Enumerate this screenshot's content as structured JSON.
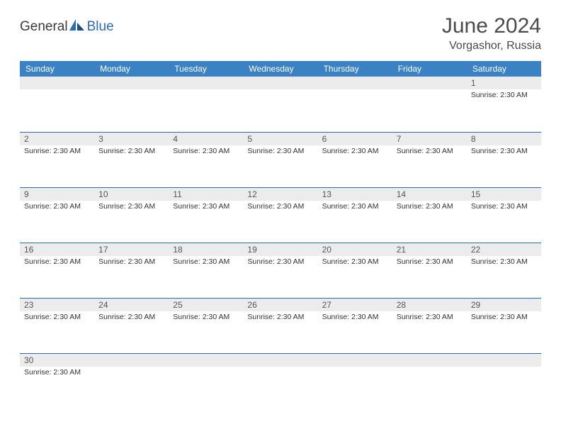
{
  "logo": {
    "text1": "General",
    "text2": "Blue",
    "fill1": "#2a6db5",
    "fill2": "#1a4d85"
  },
  "header": {
    "month_title": "June 2024",
    "location": "Vorgashor, Russia"
  },
  "colors": {
    "header_bar": "#3b82c4",
    "week_border": "#2a6db5",
    "daynum_bg": "#ececec",
    "text_dark": "#333333",
    "text_mid": "#555555"
  },
  "weekdays": [
    "Sunday",
    "Monday",
    "Tuesday",
    "Wednesday",
    "Thursday",
    "Friday",
    "Saturday"
  ],
  "sunrise_label": "Sunrise: 2:30 AM",
  "weeks": [
    [
      {
        "num": "",
        "info": "",
        "empty": true
      },
      {
        "num": "",
        "info": "",
        "empty": true
      },
      {
        "num": "",
        "info": "",
        "empty": true
      },
      {
        "num": "",
        "info": "",
        "empty": true
      },
      {
        "num": "",
        "info": "",
        "empty": true
      },
      {
        "num": "",
        "info": "",
        "empty": true
      },
      {
        "num": "1",
        "info": "Sunrise: 2:30 AM"
      }
    ],
    [
      {
        "num": "2",
        "info": "Sunrise: 2:30 AM"
      },
      {
        "num": "3",
        "info": "Sunrise: 2:30 AM"
      },
      {
        "num": "4",
        "info": "Sunrise: 2:30 AM"
      },
      {
        "num": "5",
        "info": "Sunrise: 2:30 AM"
      },
      {
        "num": "6",
        "info": "Sunrise: 2:30 AM"
      },
      {
        "num": "7",
        "info": "Sunrise: 2:30 AM"
      },
      {
        "num": "8",
        "info": "Sunrise: 2:30 AM"
      }
    ],
    [
      {
        "num": "9",
        "info": "Sunrise: 2:30 AM"
      },
      {
        "num": "10",
        "info": "Sunrise: 2:30 AM"
      },
      {
        "num": "11",
        "info": "Sunrise: 2:30 AM"
      },
      {
        "num": "12",
        "info": "Sunrise: 2:30 AM"
      },
      {
        "num": "13",
        "info": "Sunrise: 2:30 AM"
      },
      {
        "num": "14",
        "info": "Sunrise: 2:30 AM"
      },
      {
        "num": "15",
        "info": "Sunrise: 2:30 AM"
      }
    ],
    [
      {
        "num": "16",
        "info": "Sunrise: 2:30 AM"
      },
      {
        "num": "17",
        "info": "Sunrise: 2:30 AM"
      },
      {
        "num": "18",
        "info": "Sunrise: 2:30 AM"
      },
      {
        "num": "19",
        "info": "Sunrise: 2:30 AM"
      },
      {
        "num": "20",
        "info": "Sunrise: 2:30 AM"
      },
      {
        "num": "21",
        "info": "Sunrise: 2:30 AM"
      },
      {
        "num": "22",
        "info": "Sunrise: 2:30 AM"
      }
    ],
    [
      {
        "num": "23",
        "info": "Sunrise: 2:30 AM"
      },
      {
        "num": "24",
        "info": "Sunrise: 2:30 AM"
      },
      {
        "num": "25",
        "info": "Sunrise: 2:30 AM"
      },
      {
        "num": "26",
        "info": "Sunrise: 2:30 AM"
      },
      {
        "num": "27",
        "info": "Sunrise: 2:30 AM"
      },
      {
        "num": "28",
        "info": "Sunrise: 2:30 AM"
      },
      {
        "num": "29",
        "info": "Sunrise: 2:30 AM"
      }
    ],
    [
      {
        "num": "30",
        "info": "Sunrise: 2:30 AM"
      },
      {
        "num": "",
        "info": "",
        "empty": true
      },
      {
        "num": "",
        "info": "",
        "empty": true
      },
      {
        "num": "",
        "info": "",
        "empty": true
      },
      {
        "num": "",
        "info": "",
        "empty": true
      },
      {
        "num": "",
        "info": "",
        "empty": true
      },
      {
        "num": "",
        "info": "",
        "empty": true
      }
    ]
  ]
}
